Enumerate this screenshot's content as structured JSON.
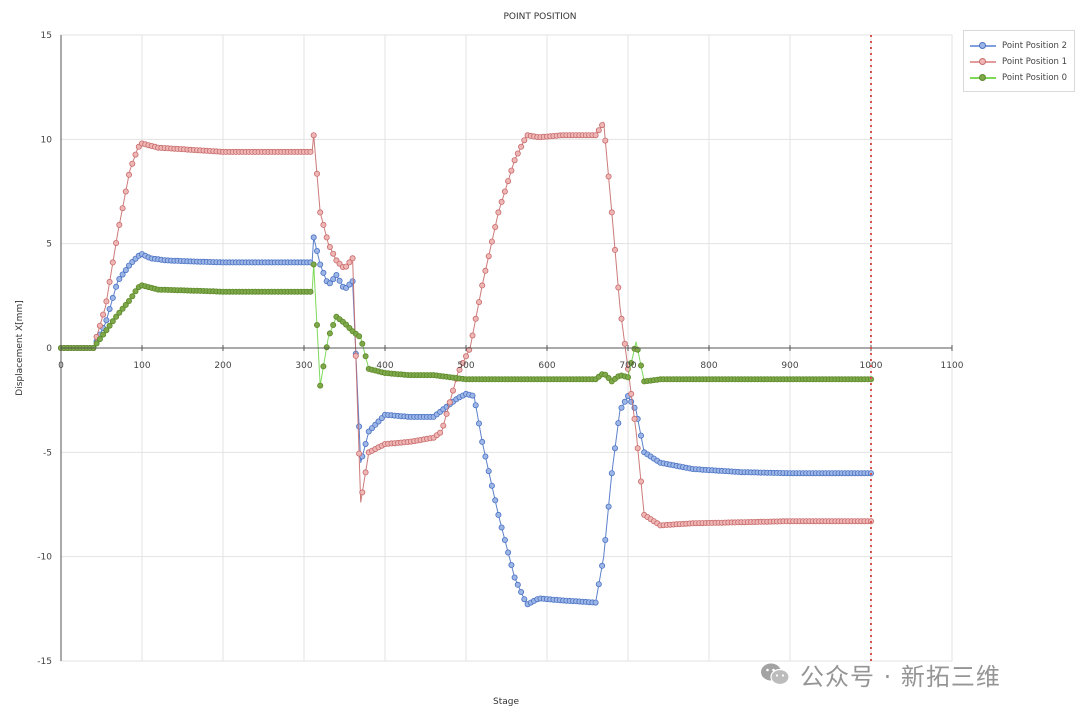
{
  "chart_data": {
    "type": "line",
    "title": "POINT POSITION",
    "xlabel": "Stage",
    "ylabel": "Displacement X[mm]",
    "xlim": [
      0,
      1100
    ],
    "ylim": [
      -15,
      15
    ],
    "x_ticks": [
      0,
      100,
      200,
      300,
      400,
      500,
      600,
      700,
      800,
      900,
      1000,
      1100
    ],
    "y_ticks": [
      15,
      10,
      5,
      0,
      -5,
      -10,
      -15
    ],
    "grid": true,
    "legend_position": "top-right",
    "marker_vertical_line": {
      "x": 1000,
      "color": "#d9534f",
      "style": "dotted"
    },
    "series": [
      {
        "name": "Point Position 2",
        "color": "#4a72c4",
        "fill": "#9db6e6",
        "x": [
          0,
          40,
          55,
          70,
          85,
          95,
          100,
          110,
          130,
          160,
          200,
          250,
          310,
          312,
          320,
          330,
          340,
          350,
          360,
          370,
          380,
          400,
          430,
          460,
          470,
          490,
          500,
          510,
          520,
          540,
          560,
          575,
          590,
          620,
          660,
          670,
          680,
          690,
          700,
          710,
          720,
          740,
          780,
          840,
          900,
          1000
        ],
        "y": [
          0,
          0,
          1.2,
          3.2,
          4.0,
          4.4,
          4.5,
          4.3,
          4.2,
          4.15,
          4.1,
          4.1,
          4.1,
          5.3,
          4.0,
          3.0,
          3.5,
          2.8,
          3.2,
          -5.5,
          -4.0,
          -3.2,
          -3.3,
          -3.3,
          -3.0,
          -2.4,
          -2.2,
          -2.3,
          -4.5,
          -8.0,
          -11.0,
          -12.3,
          -12.0,
          -12.1,
          -12.2,
          -10.0,
          -6.0,
          -3.0,
          -2.3,
          -3.0,
          -5.0,
          -5.5,
          -5.8,
          -5.95,
          -6.0,
          -6.0
        ]
      },
      {
        "name": "Point Position 1",
        "color": "#c86b6b",
        "fill": "#efb6b6",
        "x": [
          0,
          40,
          55,
          70,
          85,
          95,
          100,
          120,
          160,
          200,
          250,
          310,
          312,
          320,
          330,
          340,
          350,
          360,
          370,
          380,
          400,
          430,
          460,
          470,
          490,
          505,
          520,
          540,
          560,
          575,
          590,
          620,
          660,
          670,
          680,
          690,
          700,
          710,
          720,
          740,
          780,
          840,
          900,
          1000
        ],
        "y": [
          0,
          0,
          2.0,
          5.5,
          8.5,
          9.6,
          9.8,
          9.6,
          9.5,
          9.4,
          9.4,
          9.4,
          10.2,
          6.5,
          5.0,
          4.2,
          3.8,
          4.3,
          -7.4,
          -5.0,
          -4.6,
          -4.5,
          -4.3,
          -4.0,
          -1.2,
          0.0,
          3.0,
          6.5,
          9.0,
          10.2,
          10.1,
          10.2,
          10.2,
          10.8,
          6.5,
          2.0,
          -1.0,
          -4.0,
          -8.0,
          -8.5,
          -8.4,
          -8.35,
          -8.3,
          -8.3
        ]
      },
      {
        "name": "Point Position 0",
        "color": "#5d8a2a",
        "fill": "#7ea84a",
        "x": [
          0,
          40,
          55,
          70,
          85,
          95,
          100,
          120,
          160,
          200,
          250,
          310,
          312,
          320,
          330,
          340,
          350,
          360,
          370,
          380,
          400,
          430,
          460,
          480,
          500,
          540,
          580,
          620,
          660,
          670,
          680,
          690,
          700,
          710,
          720,
          740,
          780,
          840,
          900,
          1000
        ],
        "y": [
          0,
          0,
          0.8,
          1.6,
          2.3,
          2.9,
          3.0,
          2.8,
          2.75,
          2.7,
          2.7,
          2.7,
          4.0,
          -1.8,
          0.5,
          1.5,
          1.2,
          0.8,
          0.5,
          -1.0,
          -1.2,
          -1.3,
          -1.3,
          -1.4,
          -1.5,
          -1.5,
          -1.5,
          -1.5,
          -1.5,
          -1.2,
          -1.6,
          -1.3,
          -1.4,
          0.3,
          -1.6,
          -1.5,
          -1.5,
          -1.5,
          -1.5,
          -1.5
        ]
      }
    ]
  },
  "watermark": {
    "text": "公众号 · 新拓三维"
  }
}
